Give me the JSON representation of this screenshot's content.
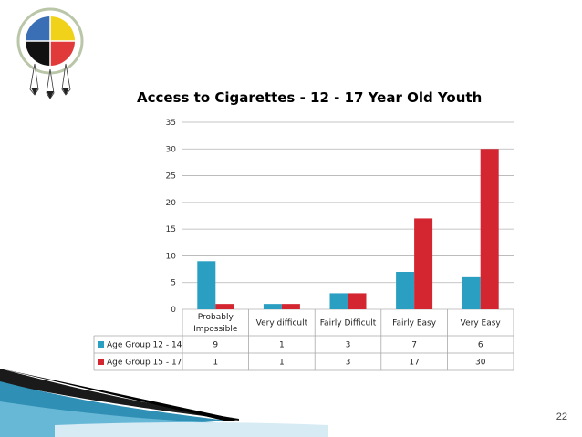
{
  "slide": {
    "page_number": "22"
  },
  "logo": {
    "description_icon": "medicine-wheel-feather-logo"
  },
  "chart_data": {
    "type": "bar",
    "title": "Access to Cigarettes - 12 - 17 Year Old Youth",
    "categories": [
      "Probably Impossible",
      "Very difficult",
      "Fairly Difficult",
      "Fairly Easy",
      "Very Easy"
    ],
    "category_lines": [
      [
        "Probably",
        "Impossible"
      ],
      [
        "Very difficult"
      ],
      [
        "Fairly Difficult"
      ],
      [
        "Fairly Easy"
      ],
      [
        "Very Easy"
      ]
    ],
    "series": [
      {
        "name": "Age Group 12 - 14",
        "color": "#2a9fc1",
        "values": [
          9,
          1,
          3,
          7,
          6
        ]
      },
      {
        "name": "Age Group 15 - 17",
        "color": "#d42630",
        "values": [
          1,
          1,
          3,
          17,
          30
        ]
      }
    ],
    "ylim": [
      0,
      35
    ],
    "yticks": [
      0,
      5,
      10,
      15,
      20,
      25,
      30,
      35
    ],
    "grid": true,
    "legend": "data-table",
    "xlabel": "",
    "ylabel": ""
  }
}
